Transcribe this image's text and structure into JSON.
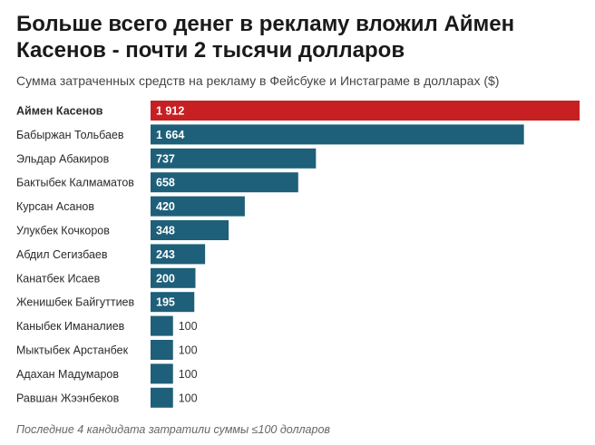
{
  "title": "Больше всего денег в рекламу вложил Аймен Касенов - почти 2 тысячи долларов",
  "subtitle": "Сумма затраченных средств на рекламу в Фейсбуке и Инстаграме в долларах ($)",
  "footnote": "Последние 4 кандидата затратили суммы ≤100 долларов",
  "chart_data": {
    "type": "bar",
    "orientation": "horizontal",
    "title": "Больше всего денег в рекламу вложил Аймен Касенов - почти 2 тысячи долларов",
    "subtitle": "Сумма затраченных средств на рекламу в Фейсбуке и Инстаграме в долларах ($)",
    "xlim": [
      0,
      1912
    ],
    "grid": false,
    "legend": "none",
    "categories": [
      "Аймен Касенов",
      "Бабыржан Тольбаев",
      "Эльдар Абакиров",
      "Бактыбек Калмаматов",
      "Курсан Асанов",
      "Улукбек Кочкоров",
      "Абдил Сегизбаев",
      "Канатбек Исаев",
      "Женишбек Байгуттиев",
      "Каныбек Иманалиев",
      "Мыктыбек Арстанбек",
      "Адахан Мадумаров",
      "Равшан Жээнбеков"
    ],
    "values": [
      1912,
      1664,
      737,
      658,
      420,
      348,
      243,
      200,
      195,
      100,
      100,
      100,
      100
    ],
    "value_labels": [
      "1 912",
      "1 664",
      "737",
      "658",
      "420",
      "348",
      "243",
      "200",
      "195",
      "100",
      "100",
      "100",
      "100"
    ],
    "highlight_index": 0,
    "colors": {
      "highlight": "#c62022",
      "default": "#1e5f7a"
    }
  }
}
